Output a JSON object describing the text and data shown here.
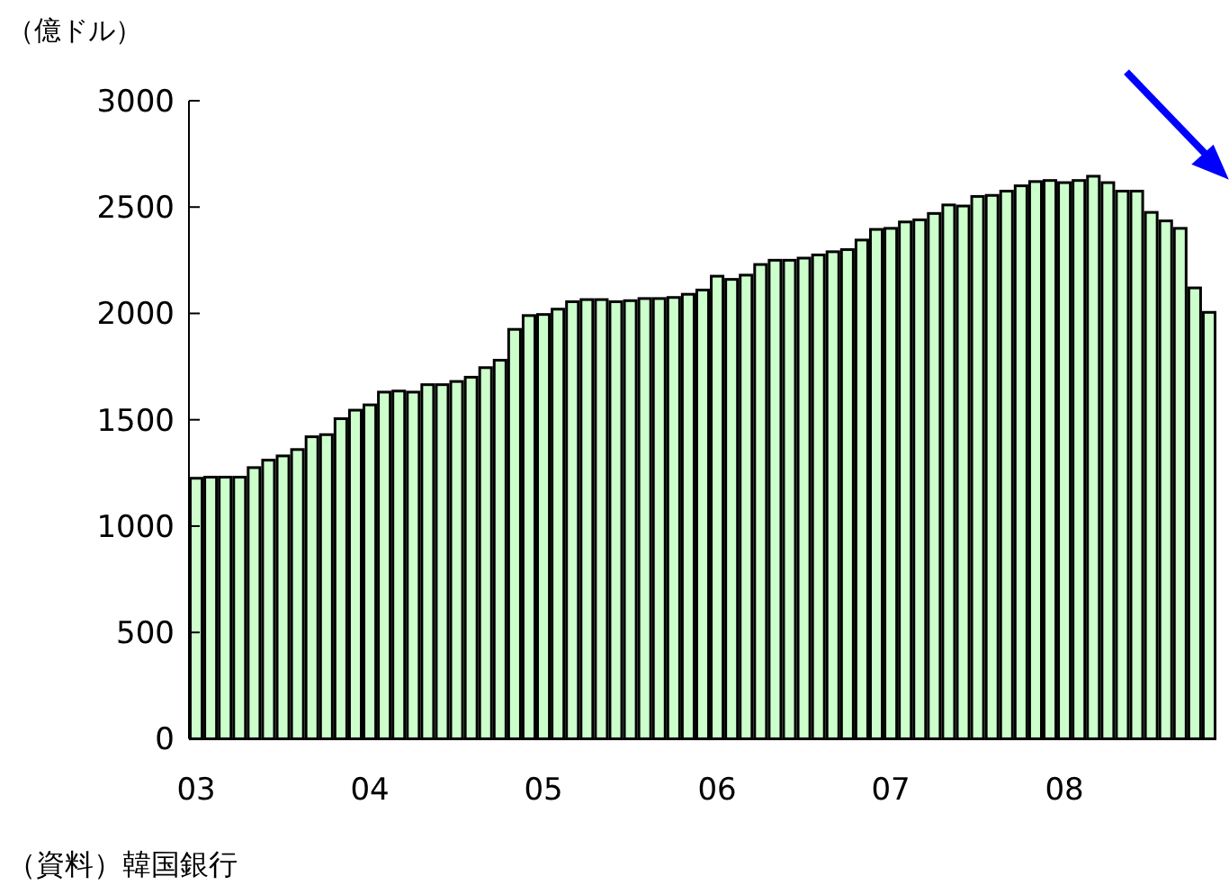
{
  "chart_data": {
    "type": "bar",
    "ylabel": "（億ドル）",
    "annotations": [
      "（資料）韓国銀行"
    ],
    "categories": [
      "03",
      null,
      null,
      null,
      null,
      null,
      null,
      null,
      null,
      null,
      null,
      null,
      "04",
      null,
      null,
      null,
      null,
      null,
      null,
      null,
      null,
      null,
      null,
      null,
      "05",
      null,
      null,
      null,
      null,
      null,
      null,
      null,
      null,
      null,
      null,
      null,
      "06",
      null,
      null,
      null,
      null,
      null,
      null,
      null,
      null,
      null,
      null,
      null,
      "07",
      null,
      null,
      null,
      null,
      null,
      null,
      null,
      null,
      null,
      null,
      null,
      "08",
      null,
      null,
      null,
      null,
      null,
      null,
      null,
      null,
      null,
      null
    ],
    "values": [
      1225,
      1230,
      1230,
      1230,
      1275,
      1310,
      1330,
      1360,
      1420,
      1430,
      1505,
      1545,
      1570,
      1630,
      1635,
      1630,
      1665,
      1665,
      1680,
      1700,
      1745,
      1780,
      1925,
      1990,
      1995,
      2020,
      2055,
      2065,
      2065,
      2055,
      2060,
      2070,
      2070,
      2075,
      2090,
      2110,
      2175,
      2160,
      2180,
      2230,
      2250,
      2250,
      2260,
      2275,
      2290,
      2300,
      2345,
      2395,
      2400,
      2430,
      2440,
      2470,
      2510,
      2505,
      2550,
      2555,
      2575,
      2600,
      2620,
      2625,
      2615,
      2625,
      2645,
      2615,
      2575,
      2575,
      2475,
      2435,
      2400,
      2120,
      2005
    ],
    "color": "#ccffcc",
    "ylim": [
      0,
      3000
    ],
    "yticks": [
      0,
      500,
      1000,
      1500,
      2000,
      2500,
      3000
    ],
    "grid": false
  }
}
